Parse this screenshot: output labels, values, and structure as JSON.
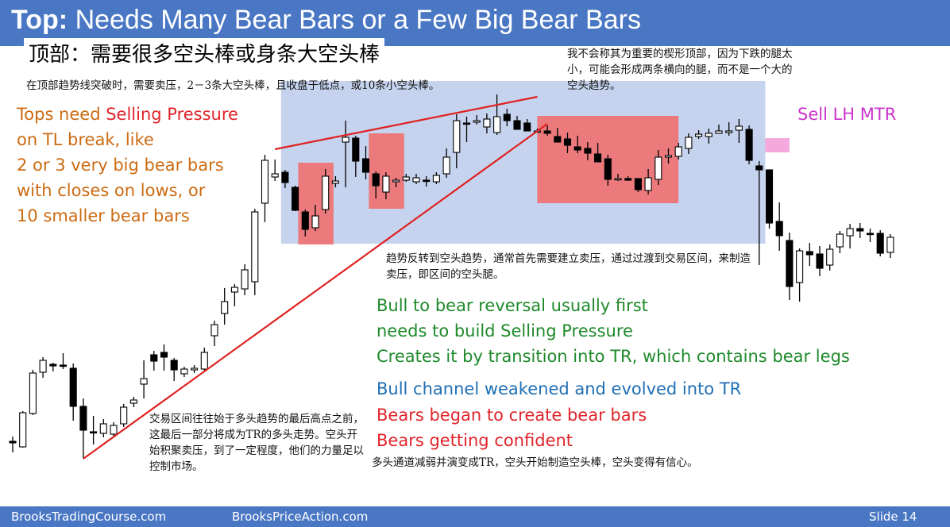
{
  "slide": {
    "title_bold": "Top:",
    "title_rest": "Needs Many Bear Bars or a Few Big Bear Bars",
    "subtitle_cn": "顶部：需要很多空头棒或身条大空头棒",
    "note_top_cn": "在顶部趋势线突破时，需要卖压，2－3条大空头棒，且收盘于低点，或10条小空头棒。",
    "note_wedge_cn": "我不会称其为重要的楔形顶部，因为下跌的腿太小，可能会形成两条横向的腿，而不是一个大的空头趋势。",
    "note_mid_cn": "趋势反转到空头趋势，通常首先需要建立卖压，通过过渡到交易区间，来制造卖压，即区间的空头腿。",
    "note_bottom_left_cn": "交易区间往往始于多头趋势的最后高点之前，这最后一部分将成为TR的多头走势。空头开始积聚卖压，到了一定程度，他们的力量足以控制市场。",
    "note_bottom_cn": "多头通道减弱并演变成TR，空头开始制造空头棒，空头变得有信心。",
    "left_en": [
      "Tops need ",
      "Selling Pressure",
      "on TL break, like",
      "2 or 3 very big bear bars",
      "with closes on lows, or",
      "10 smaller bear bars"
    ],
    "sell_label": "Sell LH MTR",
    "green_lines": [
      "Bull to bear reversal usually first",
      "needs to build Selling Pressure",
      "Creates it by transition into TR, which contains bear legs"
    ],
    "blue_line": "Bull channel weakened and evolved into TR",
    "red_lines": [
      "Bears began to create bear bars",
      "Bears getting confident"
    ]
  },
  "footer": {
    "left": "BrooksTradingCourse.com",
    "center": "BrooksPriceAction.com",
    "right": "Slide  14"
  },
  "colors": {
    "banner": "#4a77c4",
    "tr_box": "#c5d3ee",
    "bear_zone": "#ef7070",
    "sell_zone": "#f2a0d8",
    "trendline": "#e02020",
    "bull_body": "#ffffff",
    "bear_body": "#000000"
  },
  "chart_data": {
    "type": "candlestick",
    "bars": [
      {
        "o": 22,
        "h": 28,
        "l": 8,
        "c": 20
      },
      {
        "o": 15,
        "h": 60,
        "l": 14,
        "c": 58
      },
      {
        "o": 57,
        "h": 112,
        "l": 55,
        "c": 108
      },
      {
        "o": 109,
        "h": 128,
        "l": 102,
        "c": 124
      },
      {
        "o": 119,
        "h": 121,
        "l": 110,
        "c": 117
      },
      {
        "o": 118,
        "h": 133,
        "l": 113,
        "c": 117
      },
      {
        "o": 114,
        "h": 120,
        "l": 48,
        "c": 66
      },
      {
        "o": 66,
        "h": 76,
        "l": 0,
        "c": 36
      },
      {
        "o": 34,
        "h": 54,
        "l": 18,
        "c": 33
      },
      {
        "o": 32,
        "h": 50,
        "l": 27,
        "c": 44
      },
      {
        "o": 31,
        "h": 46,
        "l": 28,
        "c": 42
      },
      {
        "o": 44,
        "h": 69,
        "l": 40,
        "c": 65
      },
      {
        "o": 70,
        "h": 78,
        "l": 65,
        "c": 74
      },
      {
        "o": 94,
        "h": 124,
        "l": 76,
        "c": 101
      },
      {
        "o": 131,
        "h": 136,
        "l": 111,
        "c": 123
      },
      {
        "o": 134,
        "h": 144,
        "l": 111,
        "c": 128
      },
      {
        "o": 124,
        "h": 127,
        "l": 98,
        "c": 112
      },
      {
        "o": 107,
        "h": 116,
        "l": 103,
        "c": 113
      },
      {
        "o": 112,
        "h": 118,
        "l": 108,
        "c": 114
      },
      {
        "o": 113,
        "h": 140,
        "l": 111,
        "c": 134
      },
      {
        "o": 155,
        "h": 174,
        "l": 142,
        "c": 169
      },
      {
        "o": 183,
        "h": 215,
        "l": 169,
        "c": 198
      },
      {
        "o": 210,
        "h": 220,
        "l": 192,
        "c": 216
      },
      {
        "o": 214,
        "h": 245,
        "l": 206,
        "c": 238
      },
      {
        "o": 223,
        "h": 315,
        "l": 206,
        "c": 311
      },
      {
        "o": 322,
        "h": 383,
        "l": 298,
        "c": 376
      },
      {
        "o": 355,
        "h": 377,
        "l": 350,
        "c": 359
      },
      {
        "o": 361,
        "h": 364,
        "l": 341,
        "c": 348
      },
      {
        "o": 342,
        "h": 344,
        "l": 312,
        "c": 313
      },
      {
        "o": 311,
        "h": 314,
        "l": 280,
        "c": 289
      },
      {
        "o": 291,
        "h": 320,
        "l": 287,
        "c": 306
      },
      {
        "o": 314,
        "h": 365,
        "l": 309,
        "c": 356
      },
      {
        "o": 347,
        "h": 356,
        "l": 342,
        "c": 350
      },
      {
        "o": 399,
        "h": 426,
        "l": 342,
        "c": 405
      },
      {
        "o": 404,
        "h": 407,
        "l": 355,
        "c": 375
      },
      {
        "o": 378,
        "h": 394,
        "l": 352,
        "c": 361
      },
      {
        "o": 359,
        "h": 362,
        "l": 328,
        "c": 344
      },
      {
        "o": 336,
        "h": 361,
        "l": 327,
        "c": 356
      },
      {
        "o": 349,
        "h": 354,
        "l": 342,
        "c": 351
      },
      {
        "o": 351,
        "h": 359,
        "l": 349,
        "c": 355
      },
      {
        "o": 349,
        "h": 359,
        "l": 346,
        "c": 354
      },
      {
        "o": 351,
        "h": 356,
        "l": 343,
        "c": 350
      },
      {
        "o": 349,
        "h": 361,
        "l": 346,
        "c": 357
      },
      {
        "o": 359,
        "h": 391,
        "l": 354,
        "c": 380
      },
      {
        "o": 386,
        "h": 434,
        "l": 366,
        "c": 426
      },
      {
        "o": 423,
        "h": 431,
        "l": 399,
        "c": 422
      },
      {
        "o": 424,
        "h": 433,
        "l": 421,
        "c": 426
      },
      {
        "o": 418,
        "h": 435,
        "l": 410,
        "c": 428
      },
      {
        "o": 411,
        "h": 459,
        "l": 408,
        "c": 431
      },
      {
        "o": 434,
        "h": 441,
        "l": 419,
        "c": 426
      },
      {
        "o": 426,
        "h": 432,
        "l": 415,
        "c": 415
      },
      {
        "o": 423,
        "h": 428,
        "l": 413,
        "c": 413
      },
      {
        "o": 413,
        "h": 416,
        "l": 411,
        "c": 413
      },
      {
        "o": 413,
        "h": 420,
        "l": 407,
        "c": 410
      },
      {
        "o": 406,
        "h": 417,
        "l": 400,
        "c": 399
      },
      {
        "o": 403,
        "h": 411,
        "l": 385,
        "c": 395
      },
      {
        "o": 393,
        "h": 407,
        "l": 385,
        "c": 389
      },
      {
        "o": 391,
        "h": 399,
        "l": 376,
        "c": 385
      },
      {
        "o": 384,
        "h": 398,
        "l": 374,
        "c": 374
      },
      {
        "o": 378,
        "h": 383,
        "l": 344,
        "c": 352
      },
      {
        "o": 353,
        "h": 359,
        "l": 350,
        "c": 353
      },
      {
        "o": 353,
        "h": 356,
        "l": 350,
        "c": 351
      },
      {
        "o": 353,
        "h": 353,
        "l": 336,
        "c": 339
      },
      {
        "o": 338,
        "h": 365,
        "l": 333,
        "c": 354
      },
      {
        "o": 352,
        "h": 389,
        "l": 345,
        "c": 380
      },
      {
        "o": 380,
        "h": 391,
        "l": 372,
        "c": 382
      },
      {
        "o": 381,
        "h": 398,
        "l": 377,
        "c": 393
      },
      {
        "o": 391,
        "h": 410,
        "l": 384,
        "c": 405
      },
      {
        "o": 406,
        "h": 414,
        "l": 403,
        "c": 409
      },
      {
        "o": 406,
        "h": 416,
        "l": 397,
        "c": 410
      },
      {
        "o": 410,
        "h": 421,
        "l": 410,
        "c": 413
      },
      {
        "o": 411,
        "h": 424,
        "l": 407,
        "c": 413
      },
      {
        "o": 414,
        "h": 428,
        "l": 398,
        "c": 419
      },
      {
        "o": 415,
        "h": 420,
        "l": 371,
        "c": 376
      },
      {
        "o": 369,
        "h": 375,
        "l": 244,
        "c": 364
      },
      {
        "o": 364,
        "h": 364,
        "l": 290,
        "c": 297
      },
      {
        "o": 299,
        "h": 323,
        "l": 262,
        "c": 281
      },
      {
        "o": 275,
        "h": 285,
        "l": 200,
        "c": 217
      },
      {
        "o": 222,
        "h": 265,
        "l": 198,
        "c": 262
      },
      {
        "o": 261,
        "h": 272,
        "l": 243,
        "c": 257
      },
      {
        "o": 258,
        "h": 268,
        "l": 230,
        "c": 240
      },
      {
        "o": 244,
        "h": 270,
        "l": 237,
        "c": 264
      },
      {
        "o": 267,
        "h": 287,
        "l": 259,
        "c": 283
      },
      {
        "o": 281,
        "h": 296,
        "l": 265,
        "c": 290
      },
      {
        "o": 290,
        "h": 297,
        "l": 278,
        "c": 287
      },
      {
        "o": 284,
        "h": 290,
        "l": 273,
        "c": 283
      },
      {
        "o": 284,
        "h": 288,
        "l": 255,
        "c": 259
      },
      {
        "o": 260,
        "h": 283,
        "l": 253,
        "c": 279
      }
    ],
    "highlights": [
      "trading range",
      "bear bar clusters",
      "sell lower high major trend reversal"
    ],
    "trendlines": [
      "bull trendline",
      "wedge top line"
    ]
  }
}
